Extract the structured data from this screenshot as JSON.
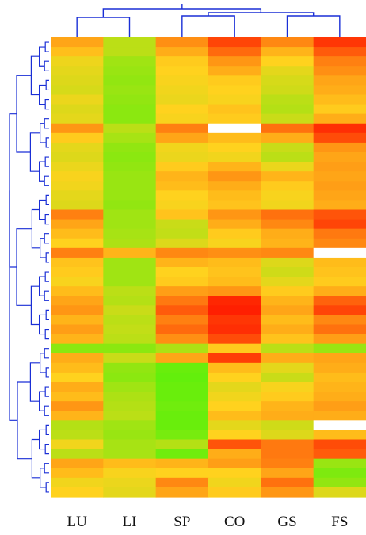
{
  "chart_data": {
    "type": "heatmap",
    "title": "",
    "xlabel": "",
    "ylabel": "",
    "columns": [
      "LU",
      "LI",
      "SP",
      "CO",
      "GS",
      "FS"
    ],
    "color_scale": {
      "low": "#55f20a",
      "mid": "#ffd21e",
      "high": "#ff1800",
      "missing": "#ffffff"
    },
    "dendrogram_color": "#1a2fd6",
    "column_dendrogram_order": [
      "LU",
      "LI",
      "SP",
      "CO",
      "GS",
      "FS"
    ],
    "values": [
      [
        0.62,
        0.3,
        0.68,
        0.88,
        0.7,
        0.92
      ],
      [
        0.55,
        0.3,
        0.6,
        0.78,
        0.58,
        0.82
      ],
      [
        0.45,
        0.22,
        0.52,
        0.66,
        0.5,
        0.72
      ],
      [
        0.42,
        0.2,
        0.5,
        0.6,
        0.42,
        0.68
      ],
      [
        0.4,
        0.18,
        0.48,
        0.52,
        0.38,
        0.62
      ],
      [
        0.38,
        0.2,
        0.46,
        0.5,
        0.36,
        0.6
      ],
      [
        0.44,
        0.18,
        0.44,
        0.48,
        0.3,
        0.56
      ],
      [
        0.4,
        0.16,
        0.5,
        0.54,
        0.28,
        0.52
      ],
      [
        0.42,
        0.16,
        0.48,
        0.52,
        0.34,
        0.6
      ],
      [
        0.66,
        0.3,
        0.72,
        null,
        0.76,
        0.94
      ],
      [
        0.52,
        0.24,
        0.62,
        0.56,
        0.6,
        0.86
      ],
      [
        0.42,
        0.18,
        0.46,
        0.5,
        0.34,
        0.66
      ],
      [
        0.4,
        0.16,
        0.44,
        0.46,
        0.3,
        0.62
      ],
      [
        0.44,
        0.18,
        0.52,
        0.58,
        0.44,
        0.64
      ],
      [
        0.48,
        0.2,
        0.58,
        0.66,
        0.58,
        0.62
      ],
      [
        0.46,
        0.2,
        0.56,
        0.6,
        0.52,
        0.64
      ],
      [
        0.42,
        0.2,
        0.5,
        0.56,
        0.48,
        0.62
      ],
      [
        0.4,
        0.18,
        0.48,
        0.54,
        0.46,
        0.6
      ],
      [
        0.72,
        0.22,
        0.54,
        0.66,
        0.76,
        0.84
      ],
      [
        0.62,
        0.22,
        0.34,
        0.6,
        0.7,
        0.88
      ],
      [
        0.56,
        0.24,
        0.32,
        0.52,
        0.6,
        0.74
      ],
      [
        0.5,
        0.26,
        0.4,
        0.48,
        0.58,
        0.7
      ],
      [
        0.72,
        0.58,
        0.7,
        0.68,
        0.7,
        null
      ],
      [
        0.54,
        0.22,
        0.58,
        0.56,
        0.4,
        0.56
      ],
      [
        0.52,
        0.22,
        0.5,
        0.54,
        0.36,
        0.54
      ],
      [
        0.48,
        0.22,
        0.52,
        0.56,
        0.42,
        0.52
      ],
      [
        0.56,
        0.3,
        0.64,
        0.66,
        0.52,
        0.6
      ],
      [
        0.62,
        0.28,
        0.74,
        0.96,
        0.58,
        0.8
      ],
      [
        0.66,
        0.34,
        0.82,
        0.98,
        0.62,
        0.88
      ],
      [
        0.58,
        0.3,
        0.72,
        0.92,
        0.56,
        0.7
      ],
      [
        0.64,
        0.32,
        0.78,
        0.94,
        0.6,
        0.76
      ],
      [
        0.58,
        0.3,
        0.68,
        0.86,
        0.54,
        0.64
      ],
      [
        0.16,
        0.16,
        0.26,
        0.52,
        0.3,
        0.2
      ],
      [
        0.6,
        0.34,
        0.62,
        0.9,
        0.6,
        0.62
      ],
      [
        0.56,
        0.18,
        0.06,
        0.56,
        0.42,
        0.6
      ],
      [
        0.5,
        0.16,
        0.04,
        0.5,
        0.34,
        0.56
      ],
      [
        0.6,
        0.22,
        0.06,
        0.42,
        0.48,
        0.58
      ],
      [
        0.56,
        0.26,
        0.06,
        0.46,
        0.52,
        0.6
      ],
      [
        0.66,
        0.28,
        0.08,
        0.5,
        0.58,
        0.64
      ],
      [
        0.58,
        0.3,
        0.06,
        0.56,
        0.6,
        0.6
      ],
      [
        0.28,
        0.22,
        0.06,
        0.42,
        0.36,
        null
      ],
      [
        0.3,
        0.2,
        0.1,
        0.5,
        0.4,
        0.56
      ],
      [
        0.46,
        0.24,
        0.28,
        0.84,
        0.74,
        0.86
      ],
      [
        0.3,
        0.24,
        0.08,
        0.6,
        0.74,
        0.82
      ],
      [
        0.62,
        0.56,
        0.58,
        0.64,
        0.72,
        0.2
      ],
      [
        0.56,
        0.48,
        0.5,
        0.5,
        0.62,
        0.12
      ],
      [
        0.46,
        0.44,
        0.7,
        0.46,
        0.76,
        0.18
      ],
      [
        0.5,
        0.42,
        0.62,
        0.52,
        0.66,
        0.4
      ]
    ]
  }
}
